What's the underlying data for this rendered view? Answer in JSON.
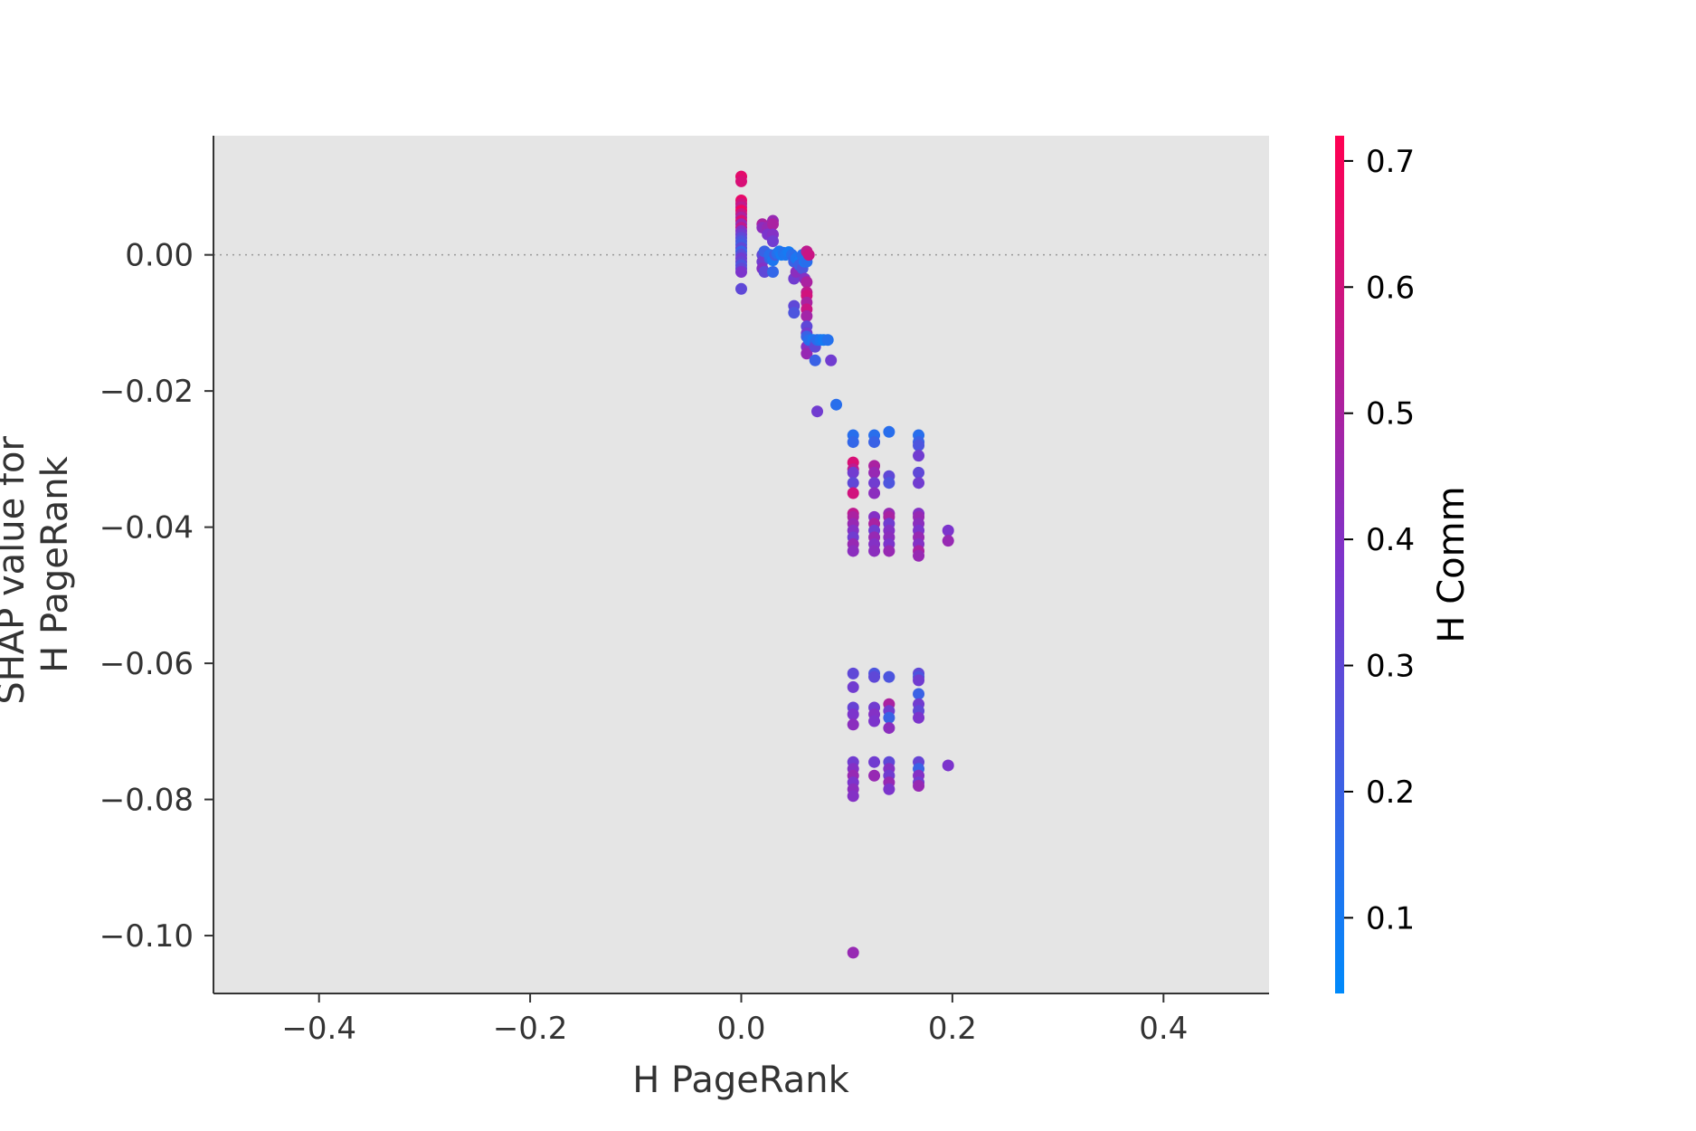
{
  "chart_data": {
    "type": "scatter",
    "title": "",
    "xlabel": "H PageRank",
    "ylabel_lines": [
      "SHAP value for",
      "H PageRank"
    ],
    "xlim": [
      -0.5,
      0.5
    ],
    "ylim": [
      -0.1085,
      0.0175
    ],
    "x_ticks": [
      -0.4,
      -0.2,
      0.0,
      0.2,
      0.4
    ],
    "x_tick_labels": [
      "−0.4",
      "−0.2",
      "0.0",
      "0.2",
      "0.4"
    ],
    "y_ticks": [
      0.0,
      -0.02,
      -0.04,
      -0.06,
      -0.08,
      -0.1
    ],
    "y_tick_labels": [
      "0.00",
      "−0.02",
      "−0.04",
      "−0.06",
      "−0.08",
      "−0.10"
    ],
    "reference_line_y": 0.0,
    "plot_background": "#e5e5e5",
    "grid": false,
    "colorbar": {
      "title": "H Comm",
      "range": [
        0.04,
        0.72
      ],
      "ticks": [
        0.1,
        0.2,
        0.3,
        0.4,
        0.5,
        0.6,
        0.7
      ],
      "tick_labels": [
        "0.1",
        "0.2",
        "0.3",
        "0.4",
        "0.5",
        "0.6",
        "0.7"
      ],
      "color_low": "#008afb",
      "color_mid": "#7c34cc",
      "color_high": "#ff0052"
    },
    "points": [
      [
        0.0,
        0.0115,
        0.65
      ],
      [
        0.0,
        0.0108,
        0.62
      ],
      [
        0.0,
        0.008,
        0.66
      ],
      [
        0.0,
        0.0075,
        0.6
      ],
      [
        0.0,
        0.007,
        0.55
      ],
      [
        0.0,
        0.0065,
        0.68
      ],
      [
        0.0,
        0.006,
        0.58
      ],
      [
        0.0,
        0.0055,
        0.5
      ],
      [
        0.0,
        0.005,
        0.62
      ],
      [
        0.0,
        0.0045,
        0.45
      ],
      [
        0.0,
        0.004,
        0.55
      ],
      [
        0.0,
        0.0035,
        0.4
      ],
      [
        0.0,
        0.003,
        0.35
      ],
      [
        0.0,
        0.0025,
        0.3
      ],
      [
        0.0,
        0.002,
        0.25
      ],
      [
        0.0,
        0.0015,
        0.22
      ],
      [
        0.0,
        0.001,
        0.3
      ],
      [
        0.0,
        0.0005,
        0.2
      ],
      [
        0.0,
        0.0,
        0.28
      ],
      [
        0.0,
        -0.0005,
        0.35
      ],
      [
        0.0,
        -0.001,
        0.32
      ],
      [
        0.0,
        -0.0015,
        0.25
      ],
      [
        0.0,
        -0.002,
        0.3
      ],
      [
        0.0,
        -0.0025,
        0.38
      ],
      [
        0.0,
        -0.005,
        0.3
      ],
      [
        0.02,
        0.0045,
        0.5
      ],
      [
        0.02,
        0.004,
        0.42
      ],
      [
        0.02,
        0.0,
        0.3
      ],
      [
        0.02,
        -0.001,
        0.35
      ],
      [
        0.02,
        -0.002,
        0.4
      ],
      [
        0.022,
        0.0005,
        0.2
      ],
      [
        0.022,
        -0.0025,
        0.3
      ],
      [
        0.025,
        0.004,
        0.45
      ],
      [
        0.025,
        0.003,
        0.38
      ],
      [
        0.027,
        -0.0005,
        0.2
      ],
      [
        0.027,
        0.0,
        0.15
      ],
      [
        0.03,
        0.005,
        0.45
      ],
      [
        0.03,
        0.0045,
        0.5
      ],
      [
        0.03,
        0.003,
        0.4
      ],
      [
        0.03,
        0.002,
        0.35
      ],
      [
        0.03,
        -0.0008,
        0.12
      ],
      [
        0.03,
        -0.0025,
        0.18
      ],
      [
        0.032,
        0.0,
        0.22
      ],
      [
        0.034,
        0.0002,
        0.15
      ],
      [
        0.036,
        0.0005,
        0.12
      ],
      [
        0.038,
        0.0,
        0.1
      ],
      [
        0.04,
        0.0003,
        0.14
      ],
      [
        0.042,
        0.0,
        0.12
      ],
      [
        0.045,
        0.0004,
        0.1
      ],
      [
        0.048,
        0.0,
        0.15
      ],
      [
        0.05,
        -0.0005,
        0.18
      ],
      [
        0.05,
        -0.001,
        0.2
      ],
      [
        0.05,
        -0.0035,
        0.35
      ],
      [
        0.05,
        -0.0075,
        0.3
      ],
      [
        0.05,
        -0.0085,
        0.25
      ],
      [
        0.052,
        -0.0005,
        0.12
      ],
      [
        0.052,
        -0.0025,
        0.42
      ],
      [
        0.055,
        -0.001,
        0.1
      ],
      [
        0.055,
        -0.0015,
        0.2
      ],
      [
        0.058,
        0.0,
        0.15
      ],
      [
        0.058,
        -0.002,
        0.25
      ],
      [
        0.06,
        -0.001,
        0.12
      ],
      [
        0.06,
        -0.0035,
        0.4
      ],
      [
        0.062,
        0.0005,
        0.55
      ],
      [
        0.062,
        -0.001,
        0.15
      ],
      [
        0.062,
        -0.004,
        0.5
      ],
      [
        0.062,
        -0.0055,
        0.55
      ],
      [
        0.062,
        -0.006,
        0.6
      ],
      [
        0.062,
        -0.007,
        0.5
      ],
      [
        0.062,
        -0.008,
        0.58
      ],
      [
        0.062,
        -0.009,
        0.48
      ],
      [
        0.062,
        -0.0105,
        0.3
      ],
      [
        0.062,
        -0.0115,
        0.35
      ],
      [
        0.062,
        -0.012,
        0.2
      ],
      [
        0.062,
        -0.0135,
        0.4
      ],
      [
        0.062,
        -0.0145,
        0.45
      ],
      [
        0.064,
        0.0,
        0.58
      ],
      [
        0.064,
        -0.0125,
        0.15
      ],
      [
        0.068,
        -0.0125,
        0.12
      ],
      [
        0.07,
        -0.013,
        0.2
      ],
      [
        0.07,
        -0.0135,
        0.3
      ],
      [
        0.07,
        -0.0155,
        0.2
      ],
      [
        0.072,
        -0.0125,
        0.15
      ],
      [
        0.075,
        -0.0125,
        0.12
      ],
      [
        0.078,
        -0.0125,
        0.1
      ],
      [
        0.082,
        -0.0125,
        0.14
      ],
      [
        0.085,
        -0.0155,
        0.35
      ],
      [
        0.072,
        -0.023,
        0.35
      ],
      [
        0.09,
        -0.022,
        0.15
      ],
      [
        0.106,
        -0.0265,
        0.15
      ],
      [
        0.106,
        -0.0275,
        0.18
      ],
      [
        0.106,
        -0.0305,
        0.62
      ],
      [
        0.106,
        -0.0315,
        0.55
      ],
      [
        0.106,
        -0.032,
        0.35
      ],
      [
        0.106,
        -0.0335,
        0.3
      ],
      [
        0.106,
        -0.035,
        0.6
      ],
      [
        0.106,
        -0.038,
        0.55
      ],
      [
        0.106,
        -0.0385,
        0.5
      ],
      [
        0.106,
        -0.0395,
        0.45
      ],
      [
        0.106,
        -0.0405,
        0.4
      ],
      [
        0.106,
        -0.0415,
        0.35
      ],
      [
        0.106,
        -0.0425,
        0.45
      ],
      [
        0.106,
        -0.0435,
        0.42
      ],
      [
        0.126,
        -0.0265,
        0.15
      ],
      [
        0.126,
        -0.0275,
        0.2
      ],
      [
        0.126,
        -0.031,
        0.5
      ],
      [
        0.126,
        -0.032,
        0.45
      ],
      [
        0.126,
        -0.0335,
        0.35
      ],
      [
        0.126,
        -0.035,
        0.42
      ],
      [
        0.126,
        -0.0385,
        0.4
      ],
      [
        0.126,
        -0.0395,
        0.5
      ],
      [
        0.126,
        -0.0405,
        0.35
      ],
      [
        0.126,
        -0.0415,
        0.45
      ],
      [
        0.126,
        -0.0425,
        0.4
      ],
      [
        0.126,
        -0.0435,
        0.42
      ],
      [
        0.14,
        -0.026,
        0.15
      ],
      [
        0.14,
        -0.0325,
        0.3
      ],
      [
        0.14,
        -0.0335,
        0.25
      ],
      [
        0.14,
        -0.038,
        0.45
      ],
      [
        0.14,
        -0.0385,
        0.5
      ],
      [
        0.14,
        -0.0395,
        0.35
      ],
      [
        0.14,
        -0.0405,
        0.4
      ],
      [
        0.14,
        -0.0415,
        0.42
      ],
      [
        0.14,
        -0.0425,
        0.38
      ],
      [
        0.14,
        -0.0435,
        0.45
      ],
      [
        0.168,
        -0.0265,
        0.15
      ],
      [
        0.168,
        -0.0275,
        0.2
      ],
      [
        0.168,
        -0.028,
        0.25
      ],
      [
        0.168,
        -0.0295,
        0.35
      ],
      [
        0.168,
        -0.032,
        0.3
      ],
      [
        0.168,
        -0.0335,
        0.35
      ],
      [
        0.168,
        -0.038,
        0.4
      ],
      [
        0.168,
        -0.0385,
        0.45
      ],
      [
        0.168,
        -0.0395,
        0.42
      ],
      [
        0.168,
        -0.0405,
        0.38
      ],
      [
        0.168,
        -0.0415,
        0.45
      ],
      [
        0.168,
        -0.0425,
        0.4
      ],
      [
        0.168,
        -0.0435,
        0.5
      ],
      [
        0.168,
        -0.0442,
        0.45
      ],
      [
        0.196,
        -0.0405,
        0.38
      ],
      [
        0.196,
        -0.042,
        0.45
      ],
      [
        0.106,
        -0.0615,
        0.3
      ],
      [
        0.106,
        -0.0635,
        0.35
      ],
      [
        0.106,
        -0.0665,
        0.32
      ],
      [
        0.106,
        -0.0675,
        0.38
      ],
      [
        0.106,
        -0.069,
        0.42
      ],
      [
        0.106,
        -0.0745,
        0.35
      ],
      [
        0.106,
        -0.0755,
        0.4
      ],
      [
        0.106,
        -0.0765,
        0.45
      ],
      [
        0.106,
        -0.0775,
        0.38
      ],
      [
        0.106,
        -0.0785,
        0.42
      ],
      [
        0.106,
        -0.0795,
        0.4
      ],
      [
        0.126,
        -0.0615,
        0.25
      ],
      [
        0.126,
        -0.062,
        0.3
      ],
      [
        0.126,
        -0.0665,
        0.35
      ],
      [
        0.126,
        -0.0675,
        0.4
      ],
      [
        0.126,
        -0.0685,
        0.38
      ],
      [
        0.126,
        -0.0745,
        0.35
      ],
      [
        0.126,
        -0.0765,
        0.45
      ],
      [
        0.14,
        -0.062,
        0.25
      ],
      [
        0.14,
        -0.066,
        0.5
      ],
      [
        0.14,
        -0.067,
        0.35
      ],
      [
        0.14,
        -0.068,
        0.2
      ],
      [
        0.14,
        -0.0695,
        0.42
      ],
      [
        0.14,
        -0.0745,
        0.3
      ],
      [
        0.14,
        -0.0755,
        0.4
      ],
      [
        0.14,
        -0.0765,
        0.35
      ],
      [
        0.14,
        -0.0775,
        0.45
      ],
      [
        0.14,
        -0.0785,
        0.38
      ],
      [
        0.168,
        -0.0615,
        0.3
      ],
      [
        0.168,
        -0.062,
        0.25
      ],
      [
        0.168,
        -0.0625,
        0.35
      ],
      [
        0.168,
        -0.0645,
        0.2
      ],
      [
        0.168,
        -0.066,
        0.35
      ],
      [
        0.168,
        -0.067,
        0.3
      ],
      [
        0.168,
        -0.068,
        0.38
      ],
      [
        0.168,
        -0.0745,
        0.32
      ],
      [
        0.168,
        -0.0755,
        0.2
      ],
      [
        0.168,
        -0.0765,
        0.4
      ],
      [
        0.168,
        -0.0775,
        0.35
      ],
      [
        0.168,
        -0.078,
        0.45
      ],
      [
        0.196,
        -0.075,
        0.38
      ],
      [
        0.106,
        -0.1025,
        0.45
      ]
    ]
  }
}
